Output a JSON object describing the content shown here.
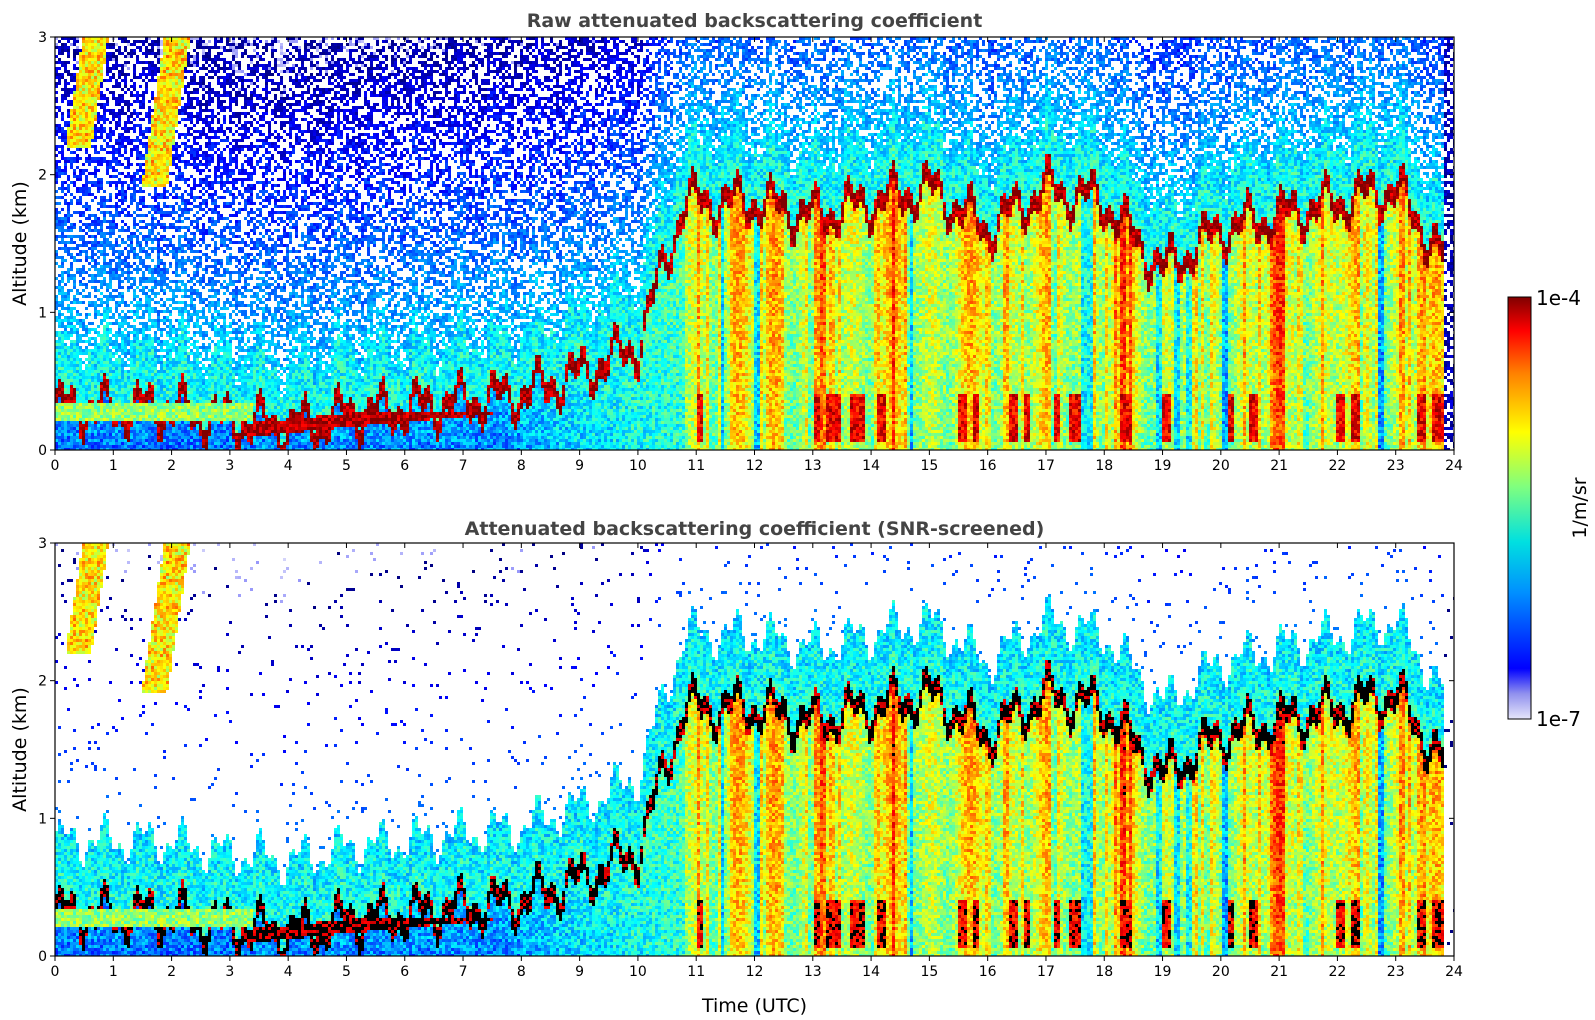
{
  "chart_data": [
    {
      "type": "heatmap",
      "title": "Raw attenuated backscattering coefficient",
      "xlabel": "",
      "ylabel": "Altitude (km)",
      "xlim": [
        0,
        24
      ],
      "ylim": [
        0,
        3
      ],
      "xticks": [
        "0",
        "1",
        "2",
        "3",
        "4",
        "5",
        "6",
        "7",
        "8",
        "9",
        "10",
        "11",
        "12",
        "13",
        "14",
        "15",
        "16",
        "17",
        "18",
        "19",
        "20",
        "21",
        "22",
        "23",
        "24"
      ],
      "yticks": [
        "0",
        "1",
        "2",
        "3"
      ],
      "screened": false
    },
    {
      "type": "heatmap",
      "title": "Attenuated backscattering coefficient (SNR-screened)",
      "xlabel": "Time (UTC)",
      "ylabel": "Altitude (km)",
      "xlim": [
        0,
        24
      ],
      "ylim": [
        0,
        3
      ],
      "xticks": [
        "0",
        "1",
        "2",
        "3",
        "4",
        "5",
        "6",
        "7",
        "8",
        "9",
        "10",
        "11",
        "12",
        "13",
        "14",
        "15",
        "16",
        "17",
        "18",
        "19",
        "20",
        "21",
        "22",
        "23",
        "24"
      ],
      "yticks": [
        "0",
        "1",
        "2",
        "3"
      ],
      "screened": true
    }
  ],
  "colorbar": {
    "label": "1/m/sr",
    "max_label": "1e-4",
    "min_label": "1e-7",
    "range": [
      1e-07,
      0.0001
    ],
    "scale": "log",
    "colormap": "jet"
  },
  "features": {
    "pbl_top_km": [
      [
        0,
        0.3
      ],
      [
        1,
        0.3
      ],
      [
        2,
        0.3
      ],
      [
        3,
        0.2
      ],
      [
        3.4,
        0.2
      ],
      [
        4,
        0.15
      ],
      [
        5,
        0.25
      ],
      [
        6,
        0.3
      ],
      [
        7,
        0.35
      ],
      [
        8,
        0.4
      ],
      [
        9,
        0.55
      ],
      [
        10,
        0.75
      ],
      [
        10.8,
        1.8
      ],
      [
        12,
        1.8
      ],
      [
        13,
        1.7
      ],
      [
        14,
        1.8
      ],
      [
        15,
        1.9
      ],
      [
        16,
        1.6
      ],
      [
        17,
        1.9
      ],
      [
        18,
        1.8
      ],
      [
        19,
        1.3
      ],
      [
        20,
        1.6
      ],
      [
        21,
        1.7
      ],
      [
        22,
        1.8
      ],
      [
        23,
        1.9
      ],
      [
        23.8,
        1.4
      ]
    ],
    "cloud_wisps": [
      {
        "x": [
          0.4,
          1.0
        ],
        "y": [
          2.2,
          3.0
        ]
      },
      {
        "x": [
          1.7,
          2.5
        ],
        "y": [
          1.9,
          3.0
        ]
      }
    ]
  }
}
